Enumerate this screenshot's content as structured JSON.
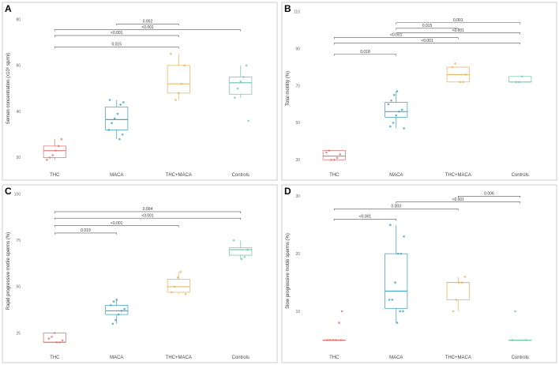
{
  "colors": {
    "THC": "#e07c78",
    "MACA": "#4aa7c4",
    "THC+MACA": "#e8b868",
    "Controls": "#7cc8b4",
    "frame": "#cccccc",
    "bracket": "#555555"
  },
  "chart_data": [
    {
      "panel": "A",
      "type": "box",
      "categories": [
        "THC",
        "MACA",
        "THC+MACA",
        "Controls"
      ],
      "ylabel": "Semen concentration (x10⁶ sp/ml)",
      "ylim": [
        15,
        85
      ],
      "yticks": [
        20,
        40,
        60,
        80
      ],
      "boxes": [
        {
          "min": 19,
          "q1": 20,
          "median": 23,
          "q3": 25,
          "max": 28
        },
        {
          "min": 28,
          "q1": 32,
          "median": 36.5,
          "q3": 42,
          "max": 45
        },
        {
          "min": 45,
          "q1": 48,
          "median": 52,
          "q3": 60,
          "max": 65
        },
        {
          "min": 46,
          "q1": 47.5,
          "median": 52.5,
          "q3": 55,
          "max": 60
        }
      ],
      "points": [
        [
          19,
          20,
          21,
          23,
          25,
          28
        ],
        [
          28,
          30,
          32,
          35,
          37,
          39,
          43,
          44,
          45
        ],
        [
          45,
          48,
          52,
          60,
          65
        ],
        [
          36,
          46,
          50,
          53,
          55,
          60
        ]
      ],
      "comparisons": [
        {
          "from": 0,
          "to": 2,
          "label": "0.015",
          "y": 68
        },
        {
          "from": 0,
          "to": 2,
          "label": "<0.001",
          "y": 73
        },
        {
          "from": 0,
          "to": 3,
          "label": "<0.001",
          "y": 75.5
        },
        {
          "from": 1,
          "to": 2,
          "label": "0.002",
          "y": 78
        }
      ]
    },
    {
      "panel": "B",
      "type": "box",
      "categories": [
        "THC",
        "MACA",
        "THC+MACA",
        "Controls"
      ],
      "ylabel": "Total motility (%)",
      "ylim": [
        25,
        112
      ],
      "yticks": [
        30,
        50,
        70,
        90,
        110
      ],
      "boxes": [
        {
          "min": 30,
          "q1": 30,
          "median": 32,
          "q3": 35,
          "max": 35
        },
        {
          "min": 47,
          "q1": 53,
          "median": 56,
          "q3": 61,
          "max": 67
        },
        {
          "min": 72,
          "q1": 72,
          "median": 76,
          "q3": 80,
          "max": 80
        },
        {
          "min": 72,
          "q1": 72,
          "median": 72,
          "q3": 75,
          "max": 75
        }
      ],
      "points": [
        [
          30,
          30,
          31,
          33,
          34,
          35
        ],
        [
          47,
          48,
          50,
          54,
          56,
          57,
          60,
          62,
          65,
          67
        ],
        [
          72,
          72,
          76,
          80,
          82
        ],
        [
          72,
          72,
          75
        ]
      ],
      "comparisons": [
        {
          "from": 0,
          "to": 1,
          "label": "0.018",
          "y": 87
        },
        {
          "from": 0,
          "to": 3,
          "label": "<0.001",
          "y": 93
        },
        {
          "from": 0,
          "to": 2,
          "label": "<0.001",
          "y": 96
        },
        {
          "from": 1,
          "to": 3,
          "label": "<0.001",
          "y": 98.5
        },
        {
          "from": 1,
          "to": 2,
          "label": "0.015",
          "y": 101
        },
        {
          "from": 1,
          "to": 3,
          "label": "0.001",
          "y": 104
        }
      ]
    },
    {
      "panel": "C",
      "type": "box",
      "categories": [
        "THC",
        "MACA",
        "THC+MACA",
        "Controls"
      ],
      "ylabel": "Rapid progressive motile sperms (%)",
      "ylim": [
        15,
        102
      ],
      "yticks": [
        25,
        50,
        75,
        100
      ],
      "boxes": [
        {
          "min": 20,
          "q1": 20,
          "median": 20,
          "q3": 25,
          "max": 25
        },
        {
          "min": 30,
          "q1": 35,
          "median": 37,
          "q3": 40,
          "max": 43
        },
        {
          "min": 46,
          "q1": 47,
          "median": 50,
          "q3": 54,
          "max": 58
        },
        {
          "min": 65,
          "q1": 67,
          "median": 70,
          "q3": 71,
          "max": 75
        }
      ],
      "points": [
        [
          20,
          20,
          21,
          22,
          23,
          25
        ],
        [
          30,
          32,
          35,
          37,
          38,
          40,
          42,
          43
        ],
        [
          46,
          47,
          50,
          55,
          58
        ],
        [
          65,
          66,
          70,
          75
        ]
      ],
      "comparisons": [
        {
          "from": 0,
          "to": 1,
          "label": "0.019",
          "y": 79
        },
        {
          "from": 0,
          "to": 2,
          "label": "<0.001",
          "y": 83
        },
        {
          "from": 0,
          "to": 3,
          "label": "<0.001",
          "y": 87
        },
        {
          "from": 0,
          "to": 3,
          "label": "0.004",
          "y": 90.5
        }
      ]
    },
    {
      "panel": "D",
      "type": "box",
      "categories": [
        "THC",
        "MACA",
        "THC+MACA",
        "Controls"
      ],
      "ylabel": "Slow progressive motile sperms (%)",
      "ylim": [
        3,
        31
      ],
      "yticks": [
        10,
        20,
        30
      ],
      "boxes": [
        {
          "min": 5,
          "q1": 5,
          "median": 5,
          "q3": 5,
          "max": 5
        },
        {
          "min": 8,
          "q1": 10.5,
          "median": 13.5,
          "q3": 20,
          "max": 25
        },
        {
          "min": 10,
          "q1": 12,
          "median": 15,
          "q3": 15,
          "max": 16
        },
        {
          "min": 5,
          "q1": 5,
          "median": 5,
          "q3": 5,
          "max": 5
        }
      ],
      "points": [
        [
          5,
          5,
          5,
          5,
          5,
          8,
          10
        ],
        [
          8,
          10,
          10,
          12,
          12,
          15,
          20,
          20,
          23,
          25
        ],
        [
          10,
          12,
          15,
          15,
          16
        ],
        [
          5,
          5,
          10
        ]
      ],
      "comparisons": [
        {
          "from": 0,
          "to": 1,
          "label": "<0.001",
          "y": 26
        },
        {
          "from": 0,
          "to": 2,
          "label": "0.003",
          "y": 27.8
        },
        {
          "from": 1,
          "to": 3,
          "label": "<0.001",
          "y": 29
        },
        {
          "from": 2,
          "to": 3,
          "label": "0.006",
          "y": 30
        }
      ]
    }
  ]
}
